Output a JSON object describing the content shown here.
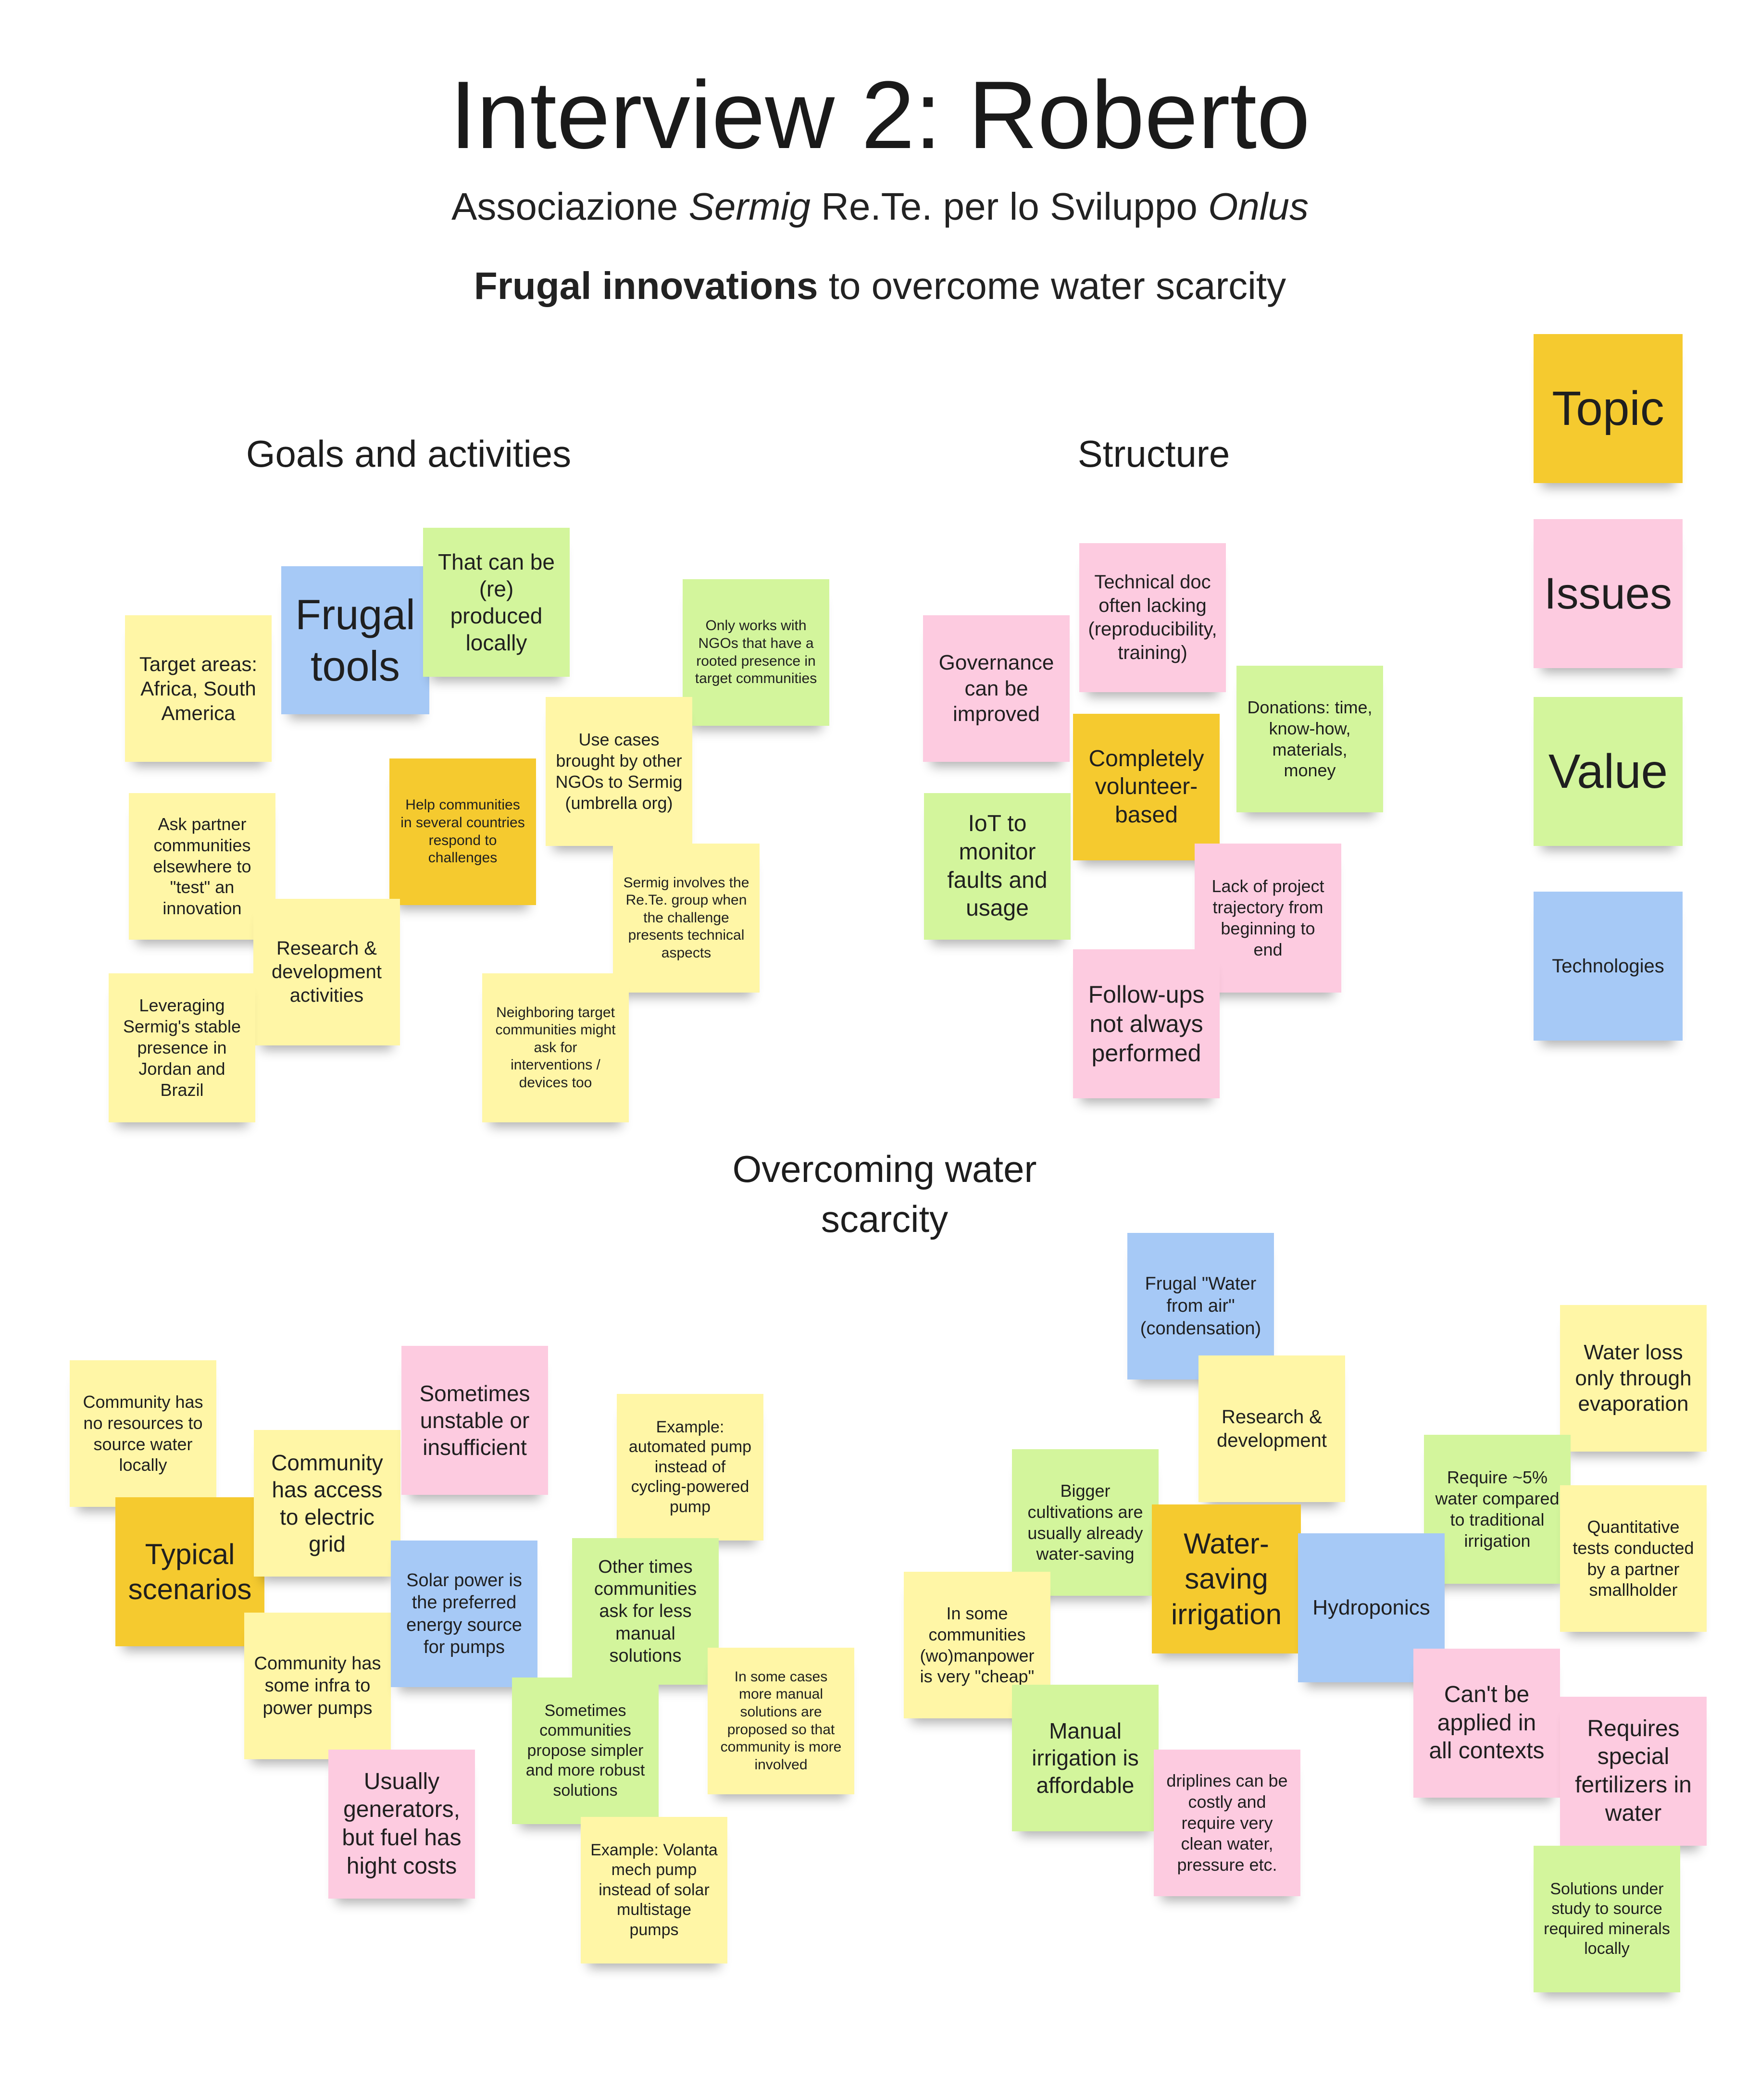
{
  "header": {
    "title": "Interview 2: Roberto",
    "subtitle_parts": [
      "Associazione ",
      "Sermig",
      " Re.Te. per lo Sviluppo ",
      "Onlus"
    ],
    "theme_bold": "Frugal innovations",
    "theme_rest": " to overcome water scarcity"
  },
  "sections": {
    "goals": "Goals and activities",
    "structure": "Structure",
    "water": "Overcoming water scarcity"
  },
  "colors": {
    "yellow": "#fff6a6",
    "orange": "#f5ca2f",
    "pink": "#fdcbe0",
    "green": "#d3f59c",
    "blue": "#a6c9f6"
  },
  "legend": [
    {
      "text": "Topic",
      "color": "orange"
    },
    {
      "text": "Issues",
      "color": "pink"
    },
    {
      "text": "Value",
      "color": "green"
    },
    {
      "text": "Technologies",
      "color": "blue"
    }
  ],
  "notes": {
    "target_areas": "Target areas: Africa, South America",
    "frugal_tools": "Frugal tools",
    "produced_locally": "That can be (re) produced locally",
    "only_ngos": "Only works with NGOs that have a rooted presence in target communities",
    "use_cases": "Use cases brought by other NGOs to Sermig (umbrella org)",
    "help_communities": "Help communities in several countries respond to challenges",
    "ask_partner": "Ask partner communities elsewhere to \"test\" an innovation",
    "research_dev_activities": "Research & development activities",
    "sermig_involves": "Sermig involves the Re.Te. group when the challenge presents technical aspects",
    "leveraging": "Leveraging Sermig's stable presence in Jordan and Brazil",
    "neighboring": "Neighboring target communities might ask for interventions / devices too",
    "technical_doc": "Technical doc often lacking (reproducibility, training)",
    "governance": "Governance can be improved",
    "donations": "Donations: time, know-how, materials, money",
    "volunteer": "Completely volunteer-based",
    "iot": "IoT to monitor faults and usage",
    "lack_trajectory": "Lack of project trajectory from beginning to end",
    "follow_ups": "Follow-ups not always performed",
    "community_no_resources": "Community has no resources to source water locally",
    "typical_scenarios": "Typical scenarios",
    "access_grid": "Community has access to electric grid",
    "unstable": "Sometimes unstable or insufficient",
    "example_automated": "Example: automated pump instead of cycling-powered pump",
    "some_infra": "Community has some infra to power pumps",
    "solar_preferred": "Solar power is the preferred energy source for pumps",
    "other_times": "Other times communities ask for less manual solutions",
    "in_some_cases": "In some cases more manual solutions are proposed so that community is more involved",
    "sometimes_simpler": "Sometimes communities propose simpler and more robust solutions",
    "generators": "Usually generators, but fuel has hight costs",
    "example_volanta": "Example: Volanta mech pump instead of solar multistage pumps",
    "water_from_air": "Frugal \"Water from air\" (condensation)",
    "research_dev": "Research & development",
    "water_loss": "Water loss only through evaporation",
    "bigger_cultivations": "Bigger cultivations are usually already water-saving",
    "require_5": "Require ~5% water compared to traditional irrigation",
    "quantitative_tests": "Quantitative tests conducted by a partner smallholder",
    "water_saving": "Water-saving irrigation",
    "hydroponics": "Hydroponics",
    "manpower_cheap": "In some communities (wo)manpower is very \"cheap\"",
    "cant_be_applied": "Can't be applied in all contexts",
    "requires_fertilizers": "Requires special fertilizers in water",
    "manual_affordable": "Manual irrigation is affordable",
    "driplines": "driplines can be costly and require very clean water, pressure etc.",
    "solutions_under_study": "Solutions under study to source required minerals locally"
  }
}
